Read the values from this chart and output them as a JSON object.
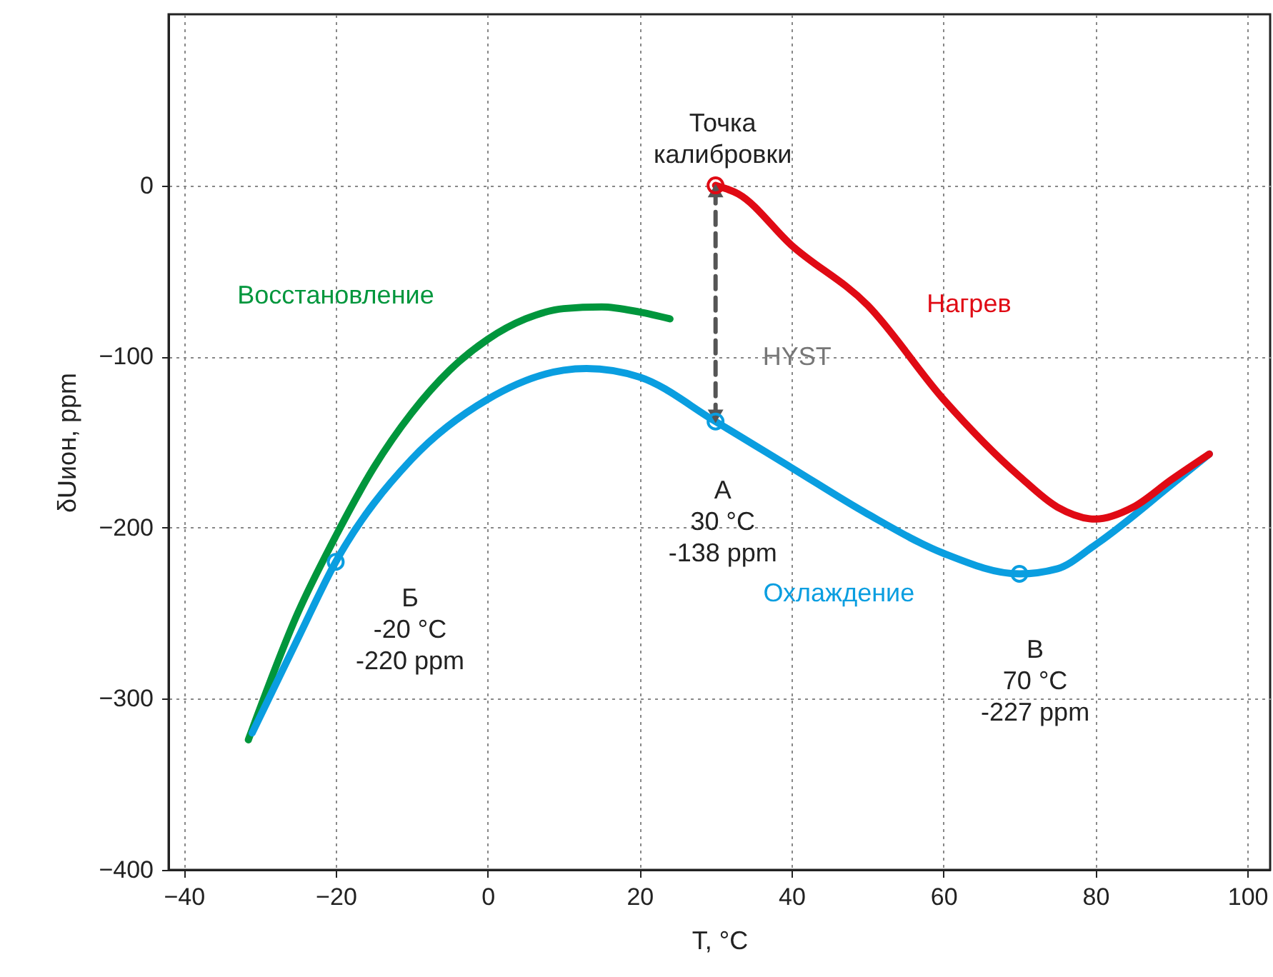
{
  "chart_data": {
    "type": "line",
    "xlabel": "T, °C",
    "ylabel": "δUион, ppm",
    "xlim": [
      -42,
      103
    ],
    "ylim": [
      -400,
      100
    ],
    "xticks": [
      -40,
      -20,
      0,
      20,
      40,
      60,
      80,
      100
    ],
    "yticks": [
      -400,
      -300,
      -200,
      -100,
      0
    ],
    "grid": true,
    "line_style": "solid",
    "series": [
      {
        "name": "Восстановление",
        "color": "#00963c",
        "x": [
          -31.5,
          -25,
          -20,
          -15,
          -10,
          -5,
          0,
          5,
          10,
          15,
          20,
          24
        ],
        "values": [
          -324,
          -250,
          -205,
          -165,
          -133,
          -108,
          -90,
          -78,
          -72,
          -71,
          -74,
          -78
        ]
      },
      {
        "name": "Охлаждение",
        "color": "#0a9ee0",
        "x": [
          -31,
          -25,
          -20,
          -10,
          0,
          10,
          13,
          20,
          30,
          40,
          50,
          60,
          70,
          75,
          80,
          90,
          95
        ],
        "values": [
          -320,
          -265,
          -220,
          -160,
          -125,
          -108,
          -107,
          -112,
          -138,
          -165,
          -192,
          -215,
          -227,
          -224,
          -210,
          -175,
          -157
        ]
      },
      {
        "name": "Нагрев",
        "color": "#e00a14",
        "x": [
          30,
          33,
          40,
          50,
          60,
          70,
          75,
          80,
          85,
          90,
          95
        ],
        "values": [
          0,
          -5,
          -35,
          -70,
          -125,
          -170,
          -188,
          -195,
          -188,
          -172,
          -157
        ]
      },
      {
        "type": "line",
        "color": "#555555",
        "line_style": "dashed",
        "marker": "triangle",
        "x": [
          30,
          30
        ],
        "values": [
          -3,
          -135
        ]
      },
      {
        "type": "scatter",
        "color": "#e00a14",
        "marker": "circle",
        "x": [
          30
        ],
        "values": [
          0
        ]
      },
      {
        "type": "scatter",
        "color": "#0a9ee0",
        "marker": "circle",
        "x": [
          -20,
          30,
          70
        ],
        "values": [
          -220,
          -138,
          -227
        ]
      }
    ],
    "annotations": [
      {
        "text": "Точка\nкалибровки",
        "x": 30,
        "y": 0
      },
      {
        "text": "HYST",
        "x": 30,
        "y": -69
      },
      {
        "text": "A\n30 °C\n-138 ppm",
        "x": 30,
        "y": -138
      },
      {
        "text": "Б\n-20 °C\n-220 ppm",
        "x": -20,
        "y": -220
      },
      {
        "text": "В\n70 °C\n-227 ppm",
        "x": 70,
        "y": -227
      }
    ]
  }
}
